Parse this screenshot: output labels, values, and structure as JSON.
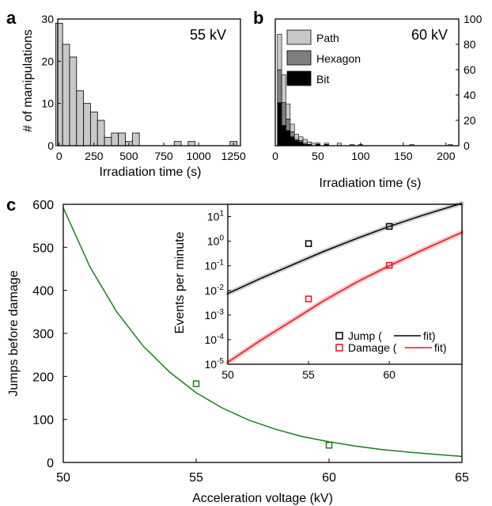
{
  "colors": {
    "hist_fill": "#c8c8c8",
    "path": "#c8c8c8",
    "hexagon": "#7f7f7f",
    "bit": "#000000",
    "jump_series": "#000000",
    "damage_series": "#e8141e",
    "main_curve": "#1a7f1a",
    "main_points": "#1a7f1a"
  },
  "chart_data": [
    {
      "id": "a",
      "panel_label": "a",
      "type": "bar",
      "annotation": "55 kV",
      "xlabel": "Irradiation time (s)",
      "ylabel": "# of manipulations",
      "xlim": [
        -10,
        1300
      ],
      "ylim": [
        0,
        30
      ],
      "xticks": [
        "0",
        "250",
        "500",
        "750",
        "1000",
        "1250"
      ],
      "yticks": [
        "0",
        "10",
        "20",
        "30"
      ],
      "bin_width": 50,
      "bins": [
        {
          "x": 0,
          "count": 29
        },
        {
          "x": 50,
          "count": 24
        },
        {
          "x": 100,
          "count": 21
        },
        {
          "x": 150,
          "count": 13
        },
        {
          "x": 200,
          "count": 10
        },
        {
          "x": 250,
          "count": 8
        },
        {
          "x": 300,
          "count": 6
        },
        {
          "x": 350,
          "count": 2
        },
        {
          "x": 400,
          "count": 3
        },
        {
          "x": 450,
          "count": 3
        },
        {
          "x": 500,
          "count": 1
        },
        {
          "x": 550,
          "count": 3
        },
        {
          "x": 850,
          "count": 1
        },
        {
          "x": 950,
          "count": 1
        },
        {
          "x": 1250,
          "count": 1
        }
      ]
    },
    {
      "id": "b",
      "panel_label": "b",
      "type": "bar",
      "stacked": true,
      "annotation": "60 kV",
      "xlabel": "Irradiation time (s)",
      "ylabel": "",
      "xlim": [
        0,
        215
      ],
      "ylim": [
        0,
        100
      ],
      "xticks": [
        "0",
        "50",
        "100",
        "150",
        "200"
      ],
      "yticks": [
        "0",
        "20",
        "40",
        "60",
        "80",
        "100"
      ],
      "legend": [
        "Path",
        "Hexagon",
        "Bit"
      ],
      "bin_width": 5,
      "bins": [
        {
          "x": 5,
          "bit": 34,
          "hexagon": 26,
          "path": 28
        },
        {
          "x": 10,
          "bit": 16,
          "hexagon": 18,
          "path": 22
        },
        {
          "x": 15,
          "bit": 12,
          "hexagon": 9,
          "path": 12
        },
        {
          "x": 20,
          "bit": 7,
          "hexagon": 4,
          "path": 6
        },
        {
          "x": 25,
          "bit": 4,
          "hexagon": 1,
          "path": 4
        },
        {
          "x": 30,
          "bit": 3,
          "hexagon": 1,
          "path": 3
        },
        {
          "x": 35,
          "bit": 1,
          "hexagon": 1,
          "path": 3
        },
        {
          "x": 40,
          "bit": 1,
          "hexagon": 0,
          "path": 2
        },
        {
          "x": 45,
          "bit": 0,
          "hexagon": 0,
          "path": 2
        },
        {
          "x": 50,
          "bit": 1,
          "hexagon": 0,
          "path": 1
        },
        {
          "x": 60,
          "bit": 1,
          "hexagon": 0,
          "path": 1
        },
        {
          "x": 75,
          "bit": 0,
          "hexagon": 0,
          "path": 2
        },
        {
          "x": 90,
          "bit": 0,
          "hexagon": 0,
          "path": 1
        },
        {
          "x": 100,
          "bit": 0,
          "hexagon": 0,
          "path": 1
        },
        {
          "x": 160,
          "bit": 0,
          "hexagon": 0,
          "path": 1
        },
        {
          "x": 205,
          "bit": 0,
          "hexagon": 0,
          "path": 1
        }
      ]
    },
    {
      "id": "c",
      "panel_label": "c",
      "type": "line",
      "xlabel": "Acceleration voltage (kV)",
      "ylabel": "Jumps before damage",
      "xlim": [
        50,
        65
      ],
      "ylim": [
        0,
        600
      ],
      "xticks": [
        "50",
        "55",
        "60",
        "65"
      ],
      "yticks": [
        "0",
        "100",
        "200",
        "300",
        "400",
        "500",
        "600"
      ],
      "points": [
        {
          "x": 55,
          "y": 183
        },
        {
          "x": 60,
          "y": 40
        }
      ],
      "curve": {
        "x": [
          50,
          51,
          52,
          53,
          54,
          55,
          56,
          57,
          58,
          59,
          60,
          61,
          62,
          63,
          64,
          65
        ],
        "y": [
          592,
          455,
          351,
          271,
          210,
          162,
          126,
          98,
          77,
          60,
          48,
          38,
          30,
          24,
          19,
          14
        ]
      }
    },
    {
      "id": "c-inset",
      "type": "scatter",
      "log_y": true,
      "xlabel": "",
      "ylabel": "Events per minute",
      "xlim": [
        50,
        64.5
      ],
      "ylim_log10": [
        -5,
        1.5
      ],
      "xticks": [
        "50",
        "55",
        "60"
      ],
      "yticks_exp": [
        "1",
        "0",
        "-1",
        "-2",
        "-3",
        "-4",
        "-5"
      ],
      "series": [
        {
          "name": "Jump",
          "legend_label": "Jump (",
          "legend_suffix": "fit)",
          "points": [
            {
              "x": 55,
              "y": 0.8
            },
            {
              "x": 60,
              "y": 4.0
            }
          ],
          "fit": {
            "x": [
              50,
              52,
              54,
              56,
              58,
              60,
              62,
              64.5
            ],
            "y": [
              0.0075,
              0.03,
              0.11,
              0.4,
              1.3,
              4.0,
              11.0,
              35.0
            ]
          }
        },
        {
          "name": "Damage",
          "legend_label": "Damage (",
          "legend_suffix": "fit)",
          "points": [
            {
              "x": 55,
              "y": 0.0045
            },
            {
              "x": 60,
              "y": 0.105
            }
          ],
          "fit": {
            "x": [
              50,
              52,
              54,
              56,
              58,
              60,
              62,
              64.5
            ],
            "y": [
              1.2e-05,
              9e-05,
              0.0006,
              0.004,
              0.022,
              0.1,
              0.42,
              2.3
            ]
          }
        }
      ]
    }
  ]
}
